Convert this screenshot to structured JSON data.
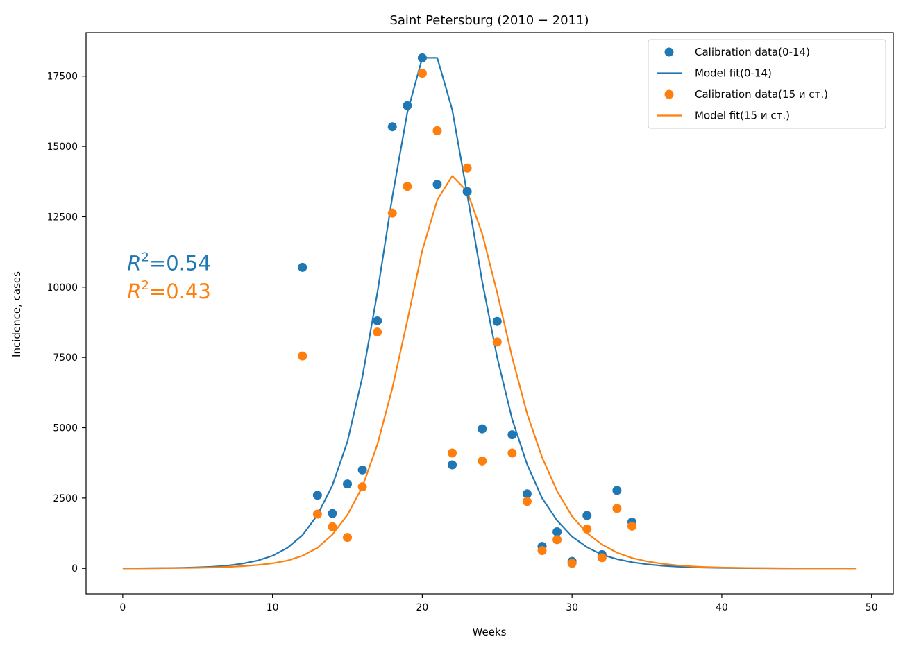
{
  "chart_data": {
    "type": "line",
    "title": "Saint Petersburg (2010 − 2011)",
    "xlabel": "Weeks",
    "ylabel": "Incidence, cases",
    "xlim": [
      -2.45,
      51.45
    ],
    "ylim": [
      -907,
      19047
    ],
    "xticks": [
      0,
      10,
      20,
      30,
      40,
      50
    ],
    "yticks": [
      0,
      2500,
      5000,
      7500,
      10000,
      12500,
      15000,
      17500
    ],
    "legend_position": "top-right",
    "colors": {
      "blue": "#1f77b4",
      "orange": "#ff7f0e"
    },
    "series": [
      {
        "name": "Calibration data(0-14)",
        "kind": "scatter",
        "color": "#1f77b4",
        "x": [
          12,
          13,
          14,
          15,
          16,
          17,
          18,
          19,
          20,
          21,
          22,
          23,
          24,
          25,
          26,
          27,
          28,
          29,
          30,
          31,
          32,
          33,
          34
        ],
        "y": [
          10700,
          2600,
          1950,
          3000,
          3500,
          8800,
          15700,
          16450,
          18150,
          13650,
          3680,
          13400,
          4960,
          8780,
          4750,
          2650,
          780,
          1300,
          250,
          1880,
          490,
          2770,
          1650
        ]
      },
      {
        "name": "Model fit(0-14)",
        "kind": "line",
        "color": "#1f77b4",
        "x": [
          0,
          1,
          2,
          3,
          4,
          5,
          6,
          7,
          8,
          9,
          10,
          11,
          12,
          13,
          14,
          15,
          16,
          17,
          18,
          19,
          20,
          21,
          22,
          23,
          24,
          25,
          26,
          27,
          28,
          29,
          30,
          31,
          32,
          33,
          34,
          35,
          36,
          37,
          38,
          39,
          40,
          41,
          42,
          43,
          44,
          45,
          46,
          47,
          48,
          49
        ],
        "y": [
          0,
          3,
          7,
          12,
          22,
          37,
          60,
          100,
          170,
          280,
          450,
          730,
          1180,
          1900,
          2950,
          4500,
          6800,
          9800,
          13200,
          16200,
          18150,
          18150,
          16300,
          13300,
          10200,
          7500,
          5300,
          3700,
          2500,
          1700,
          1130,
          750,
          490,
          330,
          220,
          145,
          95,
          62,
          40,
          26,
          17,
          11,
          7,
          5,
          3,
          2,
          1,
          1,
          0,
          0
        ]
      },
      {
        "name": "Calibration data(15 и ст.)",
        "kind": "scatter",
        "color": "#ff7f0e",
        "x": [
          12,
          13,
          14,
          15,
          16,
          17,
          18,
          19,
          20,
          21,
          22,
          23,
          24,
          25,
          26,
          27,
          28,
          29,
          30,
          31,
          32,
          33,
          34
        ],
        "y": [
          7550,
          1930,
          1480,
          1100,
          2900,
          8400,
          12630,
          13580,
          17600,
          15560,
          4100,
          14230,
          3820,
          8050,
          4100,
          2380,
          630,
          1020,
          180,
          1400,
          380,
          2130,
          1500
        ]
      },
      {
        "name": "Model fit(15 и ст.)",
        "kind": "line",
        "color": "#ff7f0e",
        "x": [
          0,
          1,
          2,
          3,
          4,
          5,
          6,
          7,
          8,
          9,
          10,
          11,
          12,
          13,
          14,
          15,
          16,
          17,
          18,
          19,
          20,
          21,
          22,
          23,
          24,
          25,
          26,
          27,
          28,
          29,
          30,
          31,
          32,
          33,
          34,
          35,
          36,
          37,
          38,
          39,
          40,
          41,
          42,
          43,
          44,
          45,
          46,
          47,
          48,
          49
        ],
        "y": [
          0,
          2,
          4,
          7,
          12,
          20,
          32,
          52,
          80,
          120,
          180,
          280,
          450,
          730,
          1200,
          1900,
          2900,
          4400,
          6400,
          8800,
          11300,
          13100,
          13950,
          13400,
          11900,
          9800,
          7500,
          5500,
          3950,
          2750,
          1850,
          1250,
          850,
          560,
          370,
          250,
          165,
          108,
          70,
          46,
          30,
          20,
          13,
          8,
          5,
          3,
          2,
          1,
          1,
          0
        ]
      }
    ],
    "annotations": [
      {
        "label": "R",
        "exp": "2",
        "value": "=0.54",
        "color": "#1f77b4",
        "x": 0.3,
        "y": 10600
      },
      {
        "label": "R",
        "exp": "2",
        "value": "=0.43",
        "color": "#ff7f0e",
        "x": 0.3,
        "y": 9600
      }
    ]
  }
}
